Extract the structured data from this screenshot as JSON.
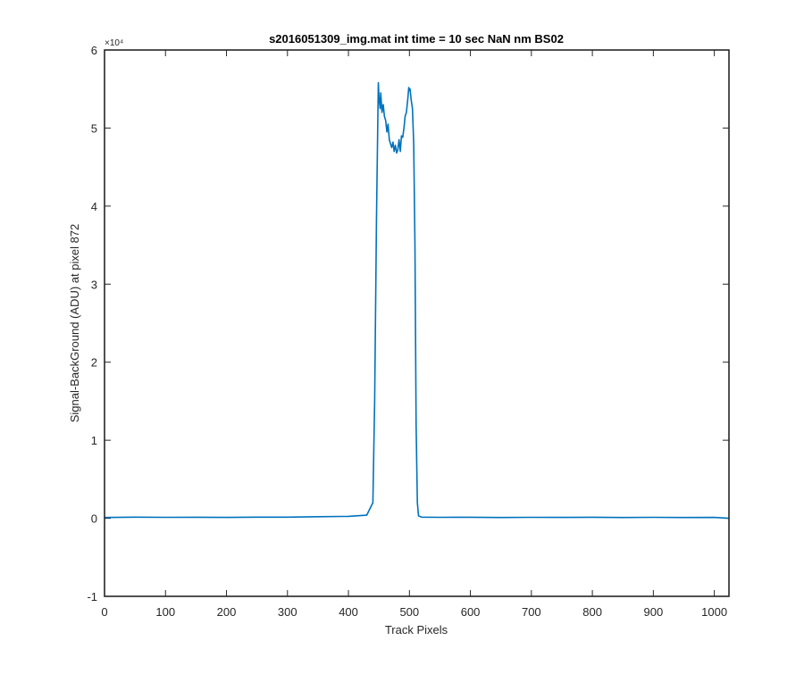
{
  "chart_data": {
    "type": "line",
    "title": "s2016051309_img.mat int time = 10 sec  NaN nm BS02",
    "xlabel": "Track Pixels",
    "ylabel": "Signal-BackGround (ADU) at pixel 872",
    "xlim": [
      0,
      1024
    ],
    "ylim": [
      -10000,
      60000
    ],
    "x_ticks": [
      0,
      100,
      200,
      300,
      400,
      500,
      600,
      700,
      800,
      900,
      1000
    ],
    "y_ticks": [
      -1,
      0,
      1,
      2,
      3,
      4,
      5,
      6
    ],
    "y_multiplier_label": "×10⁴",
    "y_multiplier": 10000,
    "grid": false,
    "line_color": "#0072BD",
    "series": [
      {
        "x": [
          0,
          50,
          100,
          150,
          200,
          250,
          300,
          350,
          400,
          430,
          440,
          443,
          446,
          448,
          449,
          450,
          452,
          453,
          455,
          457,
          459,
          461,
          463,
          465,
          467,
          469,
          471,
          473,
          475,
          477,
          479,
          481,
          483,
          485,
          487,
          489,
          491,
          493,
          495,
          497,
          499,
          500,
          501,
          503,
          505,
          507,
          509,
          511,
          513,
          515,
          520,
          550,
          600,
          650,
          700,
          750,
          800,
          850,
          900,
          950,
          1000,
          1024
        ],
        "y": [
          100,
          150,
          120,
          130,
          110,
          140,
          150,
          200,
          250,
          400,
          2000,
          15000,
          38000,
          50000,
          55800,
          54000,
          52500,
          54500,
          52000,
          53000,
          51500,
          51000,
          49500,
          50500,
          48500,
          48000,
          47500,
          48200,
          47000,
          47800,
          46800,
          47200,
          48500,
          47000,
          49000,
          48800,
          50000,
          51500,
          52000,
          53500,
          55200,
          54800,
          55000,
          53500,
          52500,
          48000,
          35000,
          12000,
          2000,
          300,
          150,
          120,
          130,
          100,
          120,
          110,
          130,
          100,
          120,
          100,
          110,
          0
        ]
      }
    ]
  }
}
